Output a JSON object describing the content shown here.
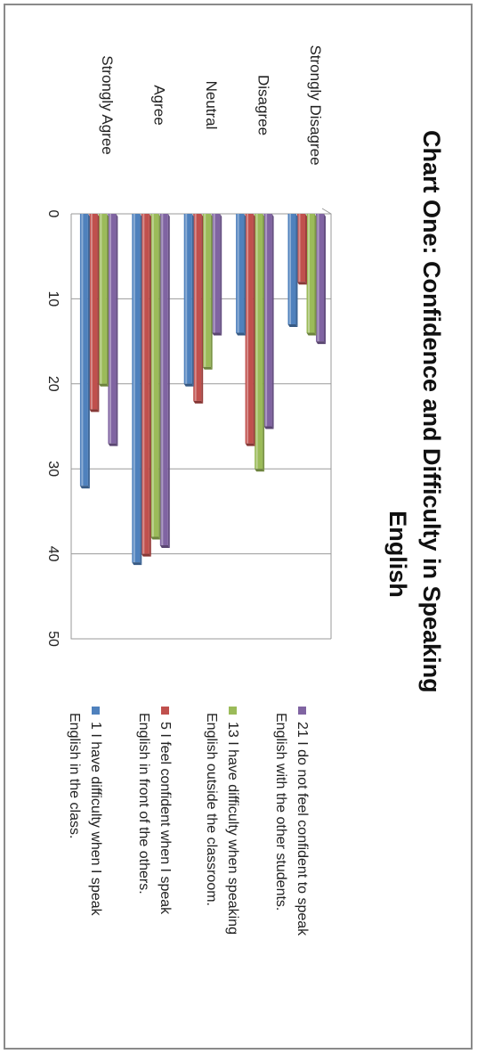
{
  "chart_data": {
    "type": "bar",
    "orientation": "horizontal-3d",
    "title": "Chart One: Confidence and Difficulty in Speaking English",
    "title_lines": [
      "Chart One: Confidence and Difficulty in Speaking",
      "English"
    ],
    "categories": [
      "Strongly Disagree",
      "Disagree",
      "Neutral",
      "Agree",
      "Strongly Agree"
    ],
    "xlim": [
      0,
      50
    ],
    "ticks": [
      "0",
      "10",
      "20",
      "30",
      "40",
      "50"
    ],
    "grid": true,
    "legend_position": "right",
    "series": [
      {
        "name": "21 I do not feel confident to speak English with the other students.",
        "label_lines": [
          "21 I do not feel confident to speak",
          "English with the other students."
        ],
        "color": "#8064a2",
        "values": [
          15,
          25,
          14,
          39,
          27
        ]
      },
      {
        "name": "13 I have difficulty when speaking English outside the classroom.",
        "label_lines": [
          "13 I have difficulty when speaking",
          "English outside the classroom."
        ],
        "color": "#9bbb59",
        "values": [
          14,
          30,
          18,
          38,
          20
        ]
      },
      {
        "name": "5 I feel confident when I speak English in front of the others.",
        "label_lines": [
          "5 I feel confident when I speak",
          "English in front of the others."
        ],
        "color": "#c0504d",
        "values": [
          8,
          27,
          22,
          40,
          23
        ]
      },
      {
        "name": "1 I have difficulty when I speak English in the class.",
        "label_lines": [
          "1 I have difficulty when I speak",
          "English in the class."
        ],
        "color": "#4f81bd",
        "values": [
          13,
          14,
          20,
          41,
          32
        ]
      }
    ]
  }
}
